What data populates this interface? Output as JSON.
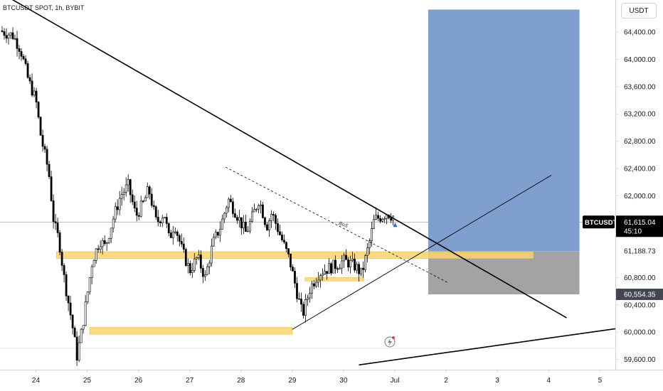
{
  "header": {
    "symbol_title": "BTCUSDT SPOT, 1h, BYBIT",
    "currency": "USDT"
  },
  "chart_data": {
    "type": "candlestick",
    "price_scale": {
      "ticks": [
        59600,
        60000,
        60400,
        60800,
        61200,
        61600,
        62000,
        62400,
        62800,
        63200,
        63600,
        64000,
        64400
      ],
      "tick_labels": [
        "59,600.00",
        "60,000.00",
        "60,400.00",
        "60,800.00",
        "",
        "",
        "62,000.00",
        "62,400.00",
        "62,800.00",
        "63,200.00",
        "63,600.00",
        "64,000.00",
        "64,400.00"
      ],
      "ylim": [
        59450,
        64870
      ]
    },
    "time_axis": {
      "labels": [
        "24",
        "25",
        "26",
        "27",
        "28",
        "29",
        "30",
        "Jul",
        "2",
        "3",
        "4",
        "5"
      ],
      "values": [
        0,
        1,
        2,
        3,
        4,
        5,
        6,
        7,
        8,
        9,
        10,
        11
      ],
      "xlim": [
        -0.7,
        11.3
      ]
    },
    "series": [
      {
        "type": "candles",
        "close_path": [
          [
            -0.7,
            64420
          ],
          [
            -0.45,
            64350
          ],
          [
            -0.3,
            64150
          ],
          [
            -0.15,
            63700
          ],
          [
            0.0,
            63400
          ],
          [
            0.1,
            62850
          ],
          [
            0.25,
            62350
          ],
          [
            0.35,
            61600
          ],
          [
            0.45,
            61350
          ],
          [
            0.55,
            60800
          ],
          [
            0.7,
            60150
          ],
          [
            0.8,
            59650
          ],
          [
            0.9,
            60050
          ],
          [
            1.0,
            60550
          ],
          [
            1.1,
            61050
          ],
          [
            1.25,
            61350
          ],
          [
            1.35,
            61250
          ],
          [
            1.5,
            61650
          ],
          [
            1.65,
            62000
          ],
          [
            1.8,
            62150
          ],
          [
            1.95,
            61700
          ],
          [
            2.1,
            61900
          ],
          [
            2.2,
            62100
          ],
          [
            2.35,
            61600
          ],
          [
            2.5,
            61750
          ],
          [
            2.6,
            61350
          ],
          [
            2.7,
            61600
          ],
          [
            2.85,
            61200
          ],
          [
            3.0,
            60900
          ],
          [
            3.15,
            61100
          ],
          [
            3.3,
            60800
          ],
          [
            3.45,
            61300
          ],
          [
            3.6,
            61550
          ],
          [
            3.75,
            61950
          ],
          [
            3.9,
            61750
          ],
          [
            4.1,
            61450
          ],
          [
            4.25,
            61750
          ],
          [
            4.35,
            61950
          ],
          [
            4.5,
            61550
          ],
          [
            4.6,
            61750
          ],
          [
            4.75,
            61450
          ],
          [
            4.85,
            61250
          ],
          [
            4.95,
            61050
          ],
          [
            5.1,
            60550
          ],
          [
            5.2,
            60250
          ],
          [
            5.35,
            60650
          ],
          [
            5.5,
            60850
          ],
          [
            5.6,
            60900
          ],
          [
            5.75,
            60950
          ],
          [
            5.9,
            61000
          ],
          [
            6.0,
            61050
          ],
          [
            6.15,
            61000
          ],
          [
            6.25,
            60950
          ],
          [
            6.35,
            60850
          ],
          [
            6.5,
            61300
          ],
          [
            6.6,
            61650
          ],
          [
            6.75,
            61700
          ],
          [
            6.85,
            61750
          ],
          [
            6.95,
            61700
          ]
        ]
      }
    ],
    "last_price": {
      "symbol": "BTCUSDT",
      "value": "61,615.04",
      "countdown": "45:10",
      "price": 61615.04
    },
    "scale_labels": [
      {
        "value": "61,188.73",
        "price": 61188.73
      },
      {
        "value": "60,554.35",
        "price": 60554.35
      }
    ],
    "zones": [
      {
        "name": "support-zone-upper",
        "x_from": 0.4,
        "x_to": 9.7,
        "y_from": 61080,
        "y_to": 61180
      },
      {
        "name": "support-zone-lower",
        "x_from": 1.05,
        "x_to": 5.0,
        "y_from": 59970,
        "y_to": 60070
      },
      {
        "name": "support-zone-small",
        "x_from": 5.25,
        "x_to": 6.4,
        "y_from": 60750,
        "y_to": 60800
      }
    ],
    "position": {
      "entry": 61188.73,
      "stop": 60554.35,
      "target": 64730,
      "x_from": 7.65,
      "x_to": 10.6
    },
    "trendlines": [
      {
        "name": "major-downtrend-line",
        "points": [
          [
            -0.7,
            64980
          ],
          [
            10.35,
            60210
          ]
        ]
      },
      {
        "name": "lower-trendline",
        "points": [
          [
            6.3,
            59520
          ],
          [
            11.3,
            60050
          ]
        ]
      },
      {
        "name": "rising-trendline",
        "points": [
          [
            5.0,
            60040
          ],
          [
            10.05,
            62300
          ]
        ]
      },
      {
        "name": "bos-dashed-line",
        "points": [
          [
            3.7,
            62420
          ],
          [
            8.05,
            60720
          ]
        ]
      }
    ],
    "annotations": [
      {
        "text": "BoS",
        "x": 5.9,
        "y": 61580
      }
    ],
    "colors": {
      "up": "#26a69a",
      "down": "#ef5350",
      "candle": "#000000",
      "zone": "#fcd36b",
      "profit": "#7f9fcf",
      "loss": "#a3a3a3",
      "line": "#000000",
      "label_bg": "#000000",
      "label_text": "#ffffff"
    }
  }
}
